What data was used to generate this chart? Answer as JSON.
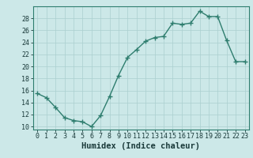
{
  "x": [
    0,
    1,
    2,
    3,
    4,
    5,
    6,
    7,
    8,
    9,
    10,
    11,
    12,
    13,
    14,
    15,
    16,
    17,
    18,
    19,
    20,
    21,
    22,
    23
  ],
  "y": [
    15.5,
    14.8,
    13.2,
    11.5,
    11.0,
    10.8,
    10.0,
    11.8,
    15.0,
    18.5,
    21.5,
    22.8,
    24.2,
    24.8,
    25.0,
    27.2,
    27.0,
    27.2,
    29.2,
    28.3,
    28.3,
    24.3,
    20.8,
    20.8
  ],
  "bg_color": "#cce8e8",
  "line_color": "#2e7d6e",
  "marker_color": "#2e7d6e",
  "grid_color": "#aacfcf",
  "xlabel": "Humidex (Indice chaleur)",
  "xlim": [
    -0.5,
    23.5
  ],
  "ylim": [
    9.5,
    30
  ],
  "yticks": [
    10,
    12,
    14,
    16,
    18,
    20,
    22,
    24,
    26,
    28
  ],
  "xticks": [
    0,
    1,
    2,
    3,
    4,
    5,
    6,
    7,
    8,
    9,
    10,
    11,
    12,
    13,
    14,
    15,
    16,
    17,
    18,
    19,
    20,
    21,
    22,
    23
  ],
  "xlabel_fontsize": 7.5,
  "tick_fontsize": 6,
  "spine_color": "#2e7d6e"
}
